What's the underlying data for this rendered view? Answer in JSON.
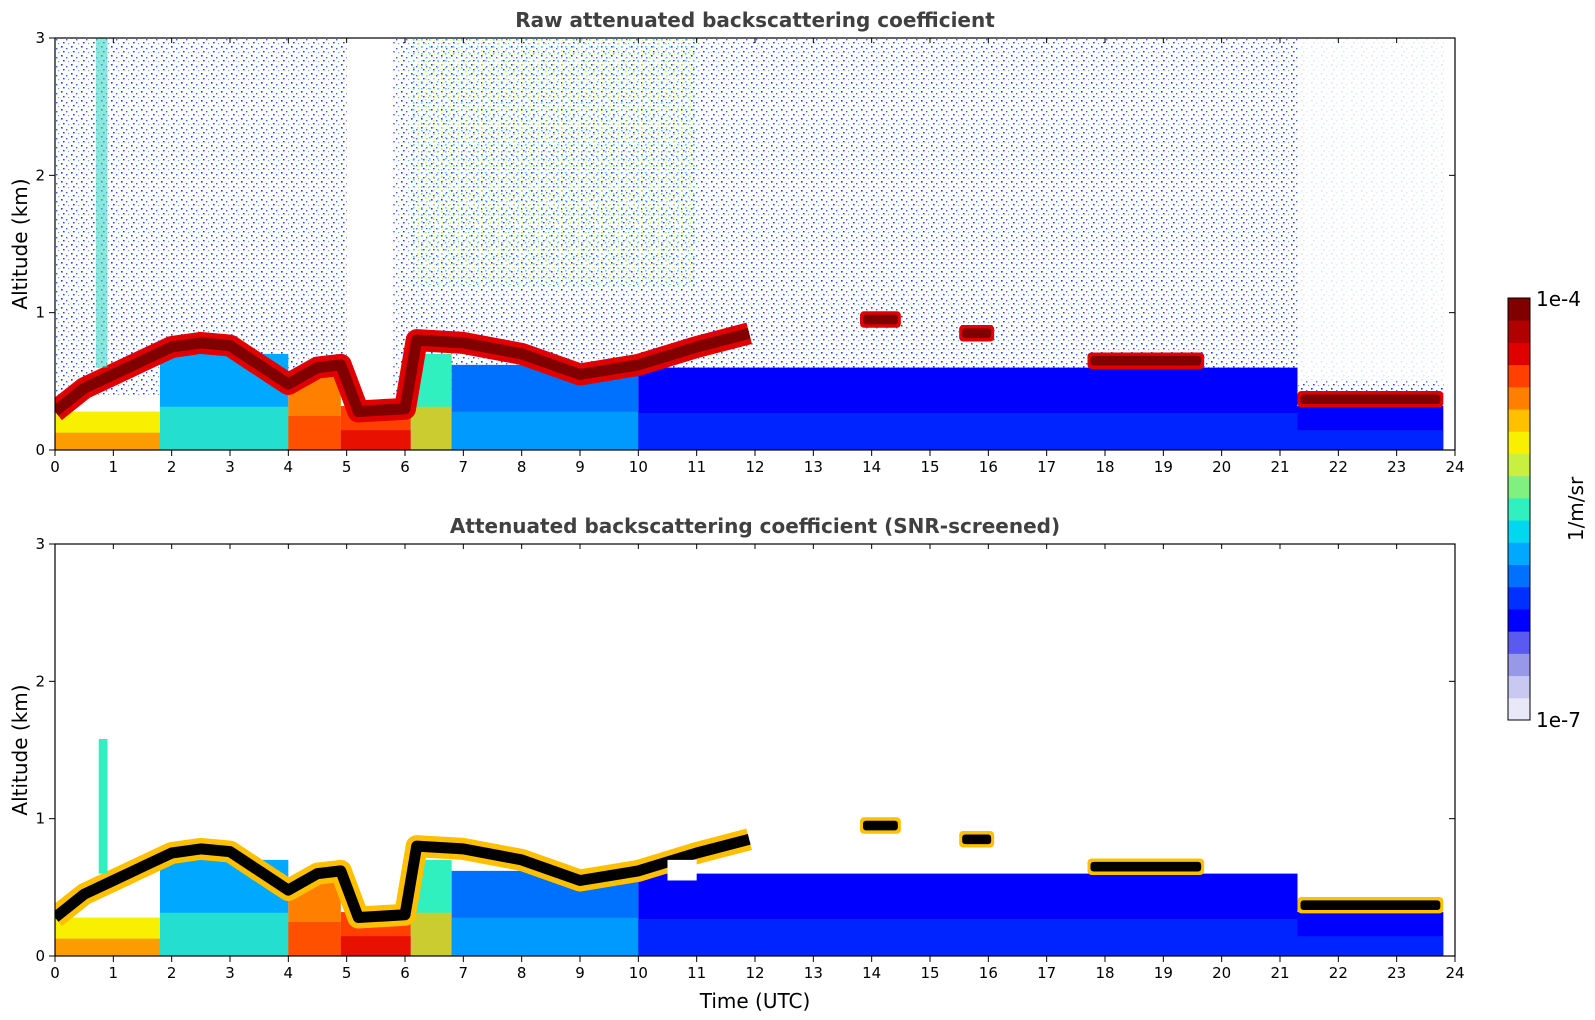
{
  "colorbar": {
    "max_label": "1e-4",
    "min_label": "1e-7",
    "unit_label": "1/m/sr",
    "colors": [
      "#e8e8f8",
      "#c8c8f0",
      "#9898e8",
      "#5a5af0",
      "#0000ff",
      "#0030ff",
      "#0070ff",
      "#00a8ff",
      "#00d8f0",
      "#30f0c0",
      "#80f080",
      "#c8f040",
      "#f8f000",
      "#ffc000",
      "#ff8000",
      "#ff4000",
      "#e00000",
      "#b00000",
      "#800000"
    ]
  },
  "chart_data": [
    {
      "type": "heatmap",
      "title": "Raw attenuated backscattering coefficient",
      "xlabel": "",
      "ylabel": "Altitude (km)",
      "xlim": [
        0,
        24
      ],
      "ylim": [
        0,
        3
      ],
      "x_ticks": [
        "0",
        "1",
        "2",
        "3",
        "4",
        "5",
        "6",
        "7",
        "8",
        "9",
        "10",
        "11",
        "12",
        "13",
        "14",
        "15",
        "16",
        "17",
        "18",
        "19",
        "20",
        "21",
        "22",
        "23",
        "24"
      ],
      "y_ticks": [
        "0",
        "1",
        "2",
        "3"
      ],
      "colorscale": "log 1e-7 to 1e-4 (1/m/sr)",
      "features": {
        "cloud_layer": [
          {
            "time": 0.0,
            "altitude_km": 0.28
          },
          {
            "time": 0.5,
            "altitude_km": 0.45
          },
          {
            "time": 1.0,
            "altitude_km": 0.55
          },
          {
            "time": 1.5,
            "altitude_km": 0.65
          },
          {
            "time": 2.0,
            "altitude_km": 0.75
          },
          {
            "time": 2.5,
            "altitude_km": 0.78
          },
          {
            "time": 3.0,
            "altitude_km": 0.76
          },
          {
            "time": 3.5,
            "altitude_km": 0.62
          },
          {
            "time": 4.0,
            "altitude_km": 0.48
          },
          {
            "time": 4.5,
            "altitude_km": 0.6
          },
          {
            "time": 4.9,
            "altitude_km": 0.62
          },
          {
            "time": 5.2,
            "altitude_km": 0.28
          },
          {
            "time": 6.0,
            "altitude_km": 0.3
          },
          {
            "time": 6.2,
            "altitude_km": 0.8
          },
          {
            "time": 7.0,
            "altitude_km": 0.78
          },
          {
            "time": 8.0,
            "altitude_km": 0.7
          },
          {
            "time": 9.0,
            "altitude_km": 0.55
          },
          {
            "time": 10.0,
            "altitude_km": 0.62
          },
          {
            "time": 11.0,
            "altitude_km": 0.75
          },
          {
            "time": 11.9,
            "altitude_km": 0.85
          }
        ],
        "broken_clouds": [
          {
            "time_start": 13.8,
            "time_end": 14.5,
            "altitude_km": 0.95
          },
          {
            "time_start": 15.5,
            "time_end": 16.1,
            "altitude_km": 0.85
          },
          {
            "time_start": 17.7,
            "time_end": 19.7,
            "altitude_km": 0.65
          },
          {
            "time_start": 21.3,
            "time_end": 23.8,
            "altitude_km": 0.37
          }
        ],
        "aerosol_top_km": 0.6
      }
    },
    {
      "type": "heatmap",
      "title": "Attenuated backscattering coefficient (SNR-screened)",
      "xlabel": "Time (UTC)",
      "ylabel": "Altitude (km)",
      "xlim": [
        0,
        24
      ],
      "ylim": [
        0,
        3
      ],
      "x_ticks": [
        "0",
        "1",
        "2",
        "3",
        "4",
        "5",
        "6",
        "7",
        "8",
        "9",
        "10",
        "11",
        "12",
        "13",
        "14",
        "15",
        "16",
        "17",
        "18",
        "19",
        "20",
        "21",
        "22",
        "23",
        "24"
      ],
      "y_ticks": [
        "0",
        "1",
        "2",
        "3"
      ],
      "colorscale": "log 1e-7 to 1e-4 (1/m/sr)"
    }
  ]
}
